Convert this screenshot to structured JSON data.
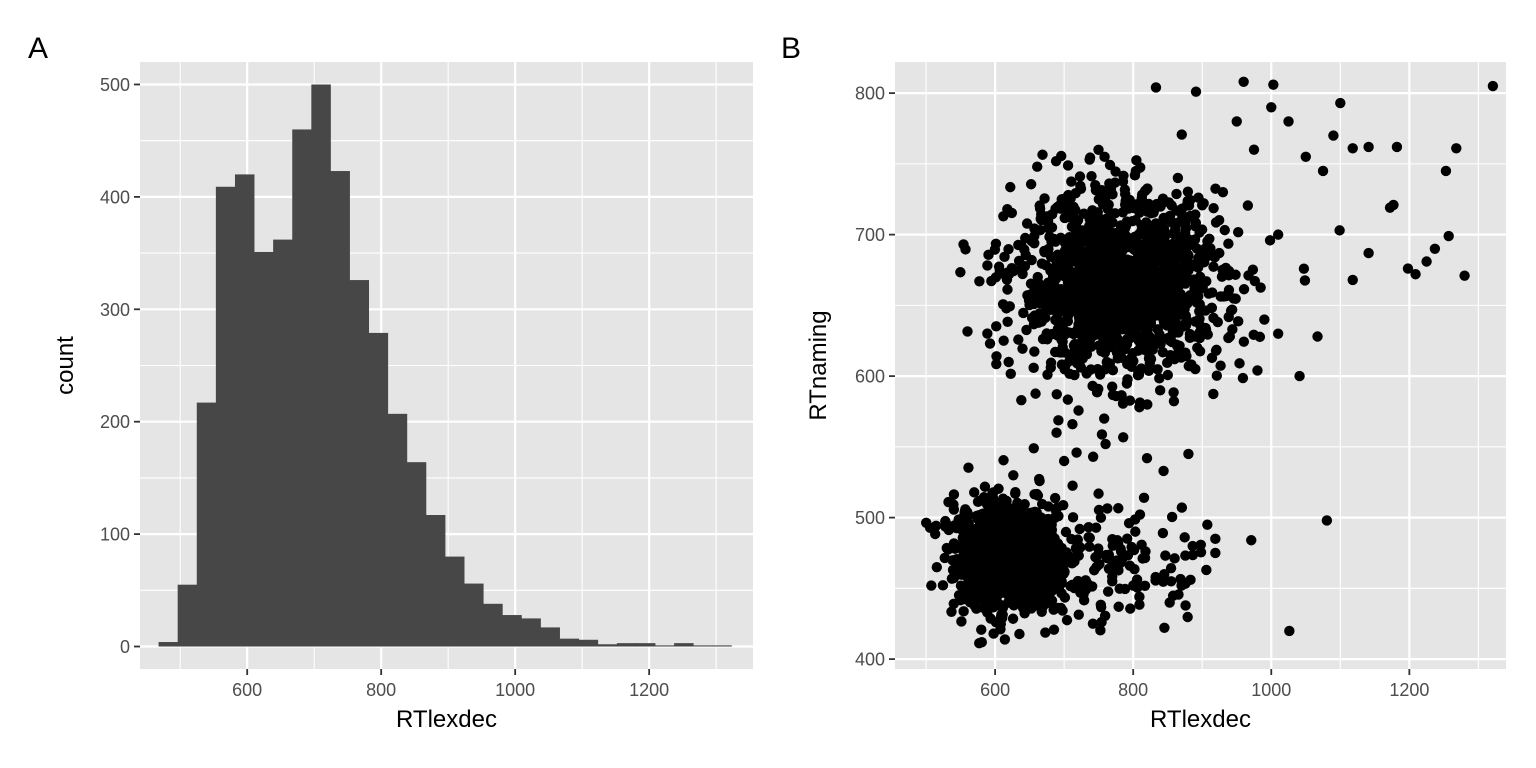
{
  "panels": {
    "a_tag": "A",
    "b_tag": "B"
  },
  "style": {
    "panel_bg": "#e5e5e5",
    "grid": "#ffffff",
    "bar_fill": "#474747",
    "point_fill": "#000000",
    "tick_text": "#4d4d4d"
  },
  "chart_data": [
    {
      "type": "bar",
      "xlabel": "RTlexdec",
      "ylabel": "count",
      "x_ticks": [
        600,
        800,
        1000,
        1200
      ],
      "y_ticks": [
        0,
        100,
        200,
        300,
        400,
        500
      ],
      "xlim": [
        440,
        1355
      ],
      "ylim": [
        -20,
        520
      ],
      "grid": true,
      "bin_width": 28.5,
      "bin_centers": [
        482,
        510.5,
        539,
        567.5,
        596,
        624.5,
        653,
        681.5,
        710,
        738.5,
        767,
        795.5,
        824,
        852.5,
        881,
        909.5,
        938,
        966.5,
        995,
        1023.5,
        1052,
        1080.5,
        1109,
        1137.5,
        1166,
        1194.5,
        1223,
        1251.5,
        1280,
        1308.5
      ],
      "values": [
        4,
        55,
        217,
        409,
        420,
        351,
        362,
        460,
        500,
        423,
        326,
        279,
        207,
        164,
        117,
        80,
        56,
        38,
        28,
        25,
        17,
        7,
        6,
        2,
        3,
        3,
        1,
        3,
        1,
        1
      ]
    },
    {
      "type": "scatter",
      "xlabel": "RTlexdec",
      "ylabel": "RTnaming",
      "x_ticks": [
        600,
        800,
        1000,
        1200
      ],
      "y_ticks": [
        400,
        500,
        600,
        700,
        800
      ],
      "xlim": [
        455,
        1340
      ],
      "ylim": [
        393,
        822
      ],
      "grid": true,
      "clusters": [
        {
          "center": [
            620,
            472
          ],
          "spread": [
            38,
            18
          ],
          "n": 1100
        },
        {
          "center": [
            780,
            665
          ],
          "spread": [
            75,
            32
          ],
          "n": 1400
        },
        {
          "center": [
            740,
            470
          ],
          "spread": [
            90,
            22
          ],
          "n": 180
        }
      ],
      "points": [
        [
          1321,
          805
        ],
        [
          1268,
          761
        ],
        [
          1253,
          745
        ],
        [
          1257,
          699
        ],
        [
          1280,
          671
        ],
        [
          1237,
          690
        ],
        [
          1225,
          681
        ],
        [
          1209,
          672
        ],
        [
          1198,
          676
        ],
        [
          1182,
          762
        ],
        [
          1177,
          721
        ],
        [
          1172,
          719
        ],
        [
          1141,
          762
        ],
        [
          1141,
          687
        ],
        [
          1118,
          761
        ],
        [
          1118,
          668
        ],
        [
          1100,
          793
        ],
        [
          1090,
          770
        ],
        [
          1099,
          703
        ],
        [
          1003,
          806
        ],
        [
          960,
          808
        ],
        [
          891,
          801
        ],
        [
          833,
          804
        ],
        [
          971,
          484
        ],
        [
          919,
          485
        ],
        [
          919,
          475
        ],
        [
          880,
          545
        ],
        [
          883,
          456
        ],
        [
          844,
          533
        ],
        [
          820,
          542
        ],
        [
          800,
          452
        ],
        [
          779,
          437
        ],
        [
          809,
          444
        ],
        [
          656,
          549
        ],
        [
          980,
          604
        ],
        [
          602,
          614
        ],
        [
          638,
          583
        ],
        [
          661,
          748
        ],
        [
          1067,
          628
        ],
        [
          1041,
          600
        ],
        [
          954,
          609
        ],
        [
          890,
          605
        ],
        [
          809,
          578
        ],
        [
          758,
          570
        ],
        [
          689,
          560
        ],
        [
          712,
          566
        ],
        [
          718,
          546
        ],
        [
          742,
          543
        ],
        [
          700,
          540
        ],
        [
          760,
          552
        ],
        [
          855,
          455
        ],
        [
          845,
          460
        ],
        [
          870,
          452
        ],
        [
          1000,
          790
        ],
        [
          1025,
          780
        ],
        [
          950,
          780
        ],
        [
          975,
          760
        ],
        [
          1050,
          755
        ],
        [
          1075,
          745
        ],
        [
          930,
          730
        ],
        [
          1010,
          700
        ],
        [
          990,
          640
        ],
        [
          1010,
          630
        ],
        [
          940,
          628
        ],
        [
          920,
          618
        ],
        [
          860,
          612
        ]
      ]
    }
  ]
}
